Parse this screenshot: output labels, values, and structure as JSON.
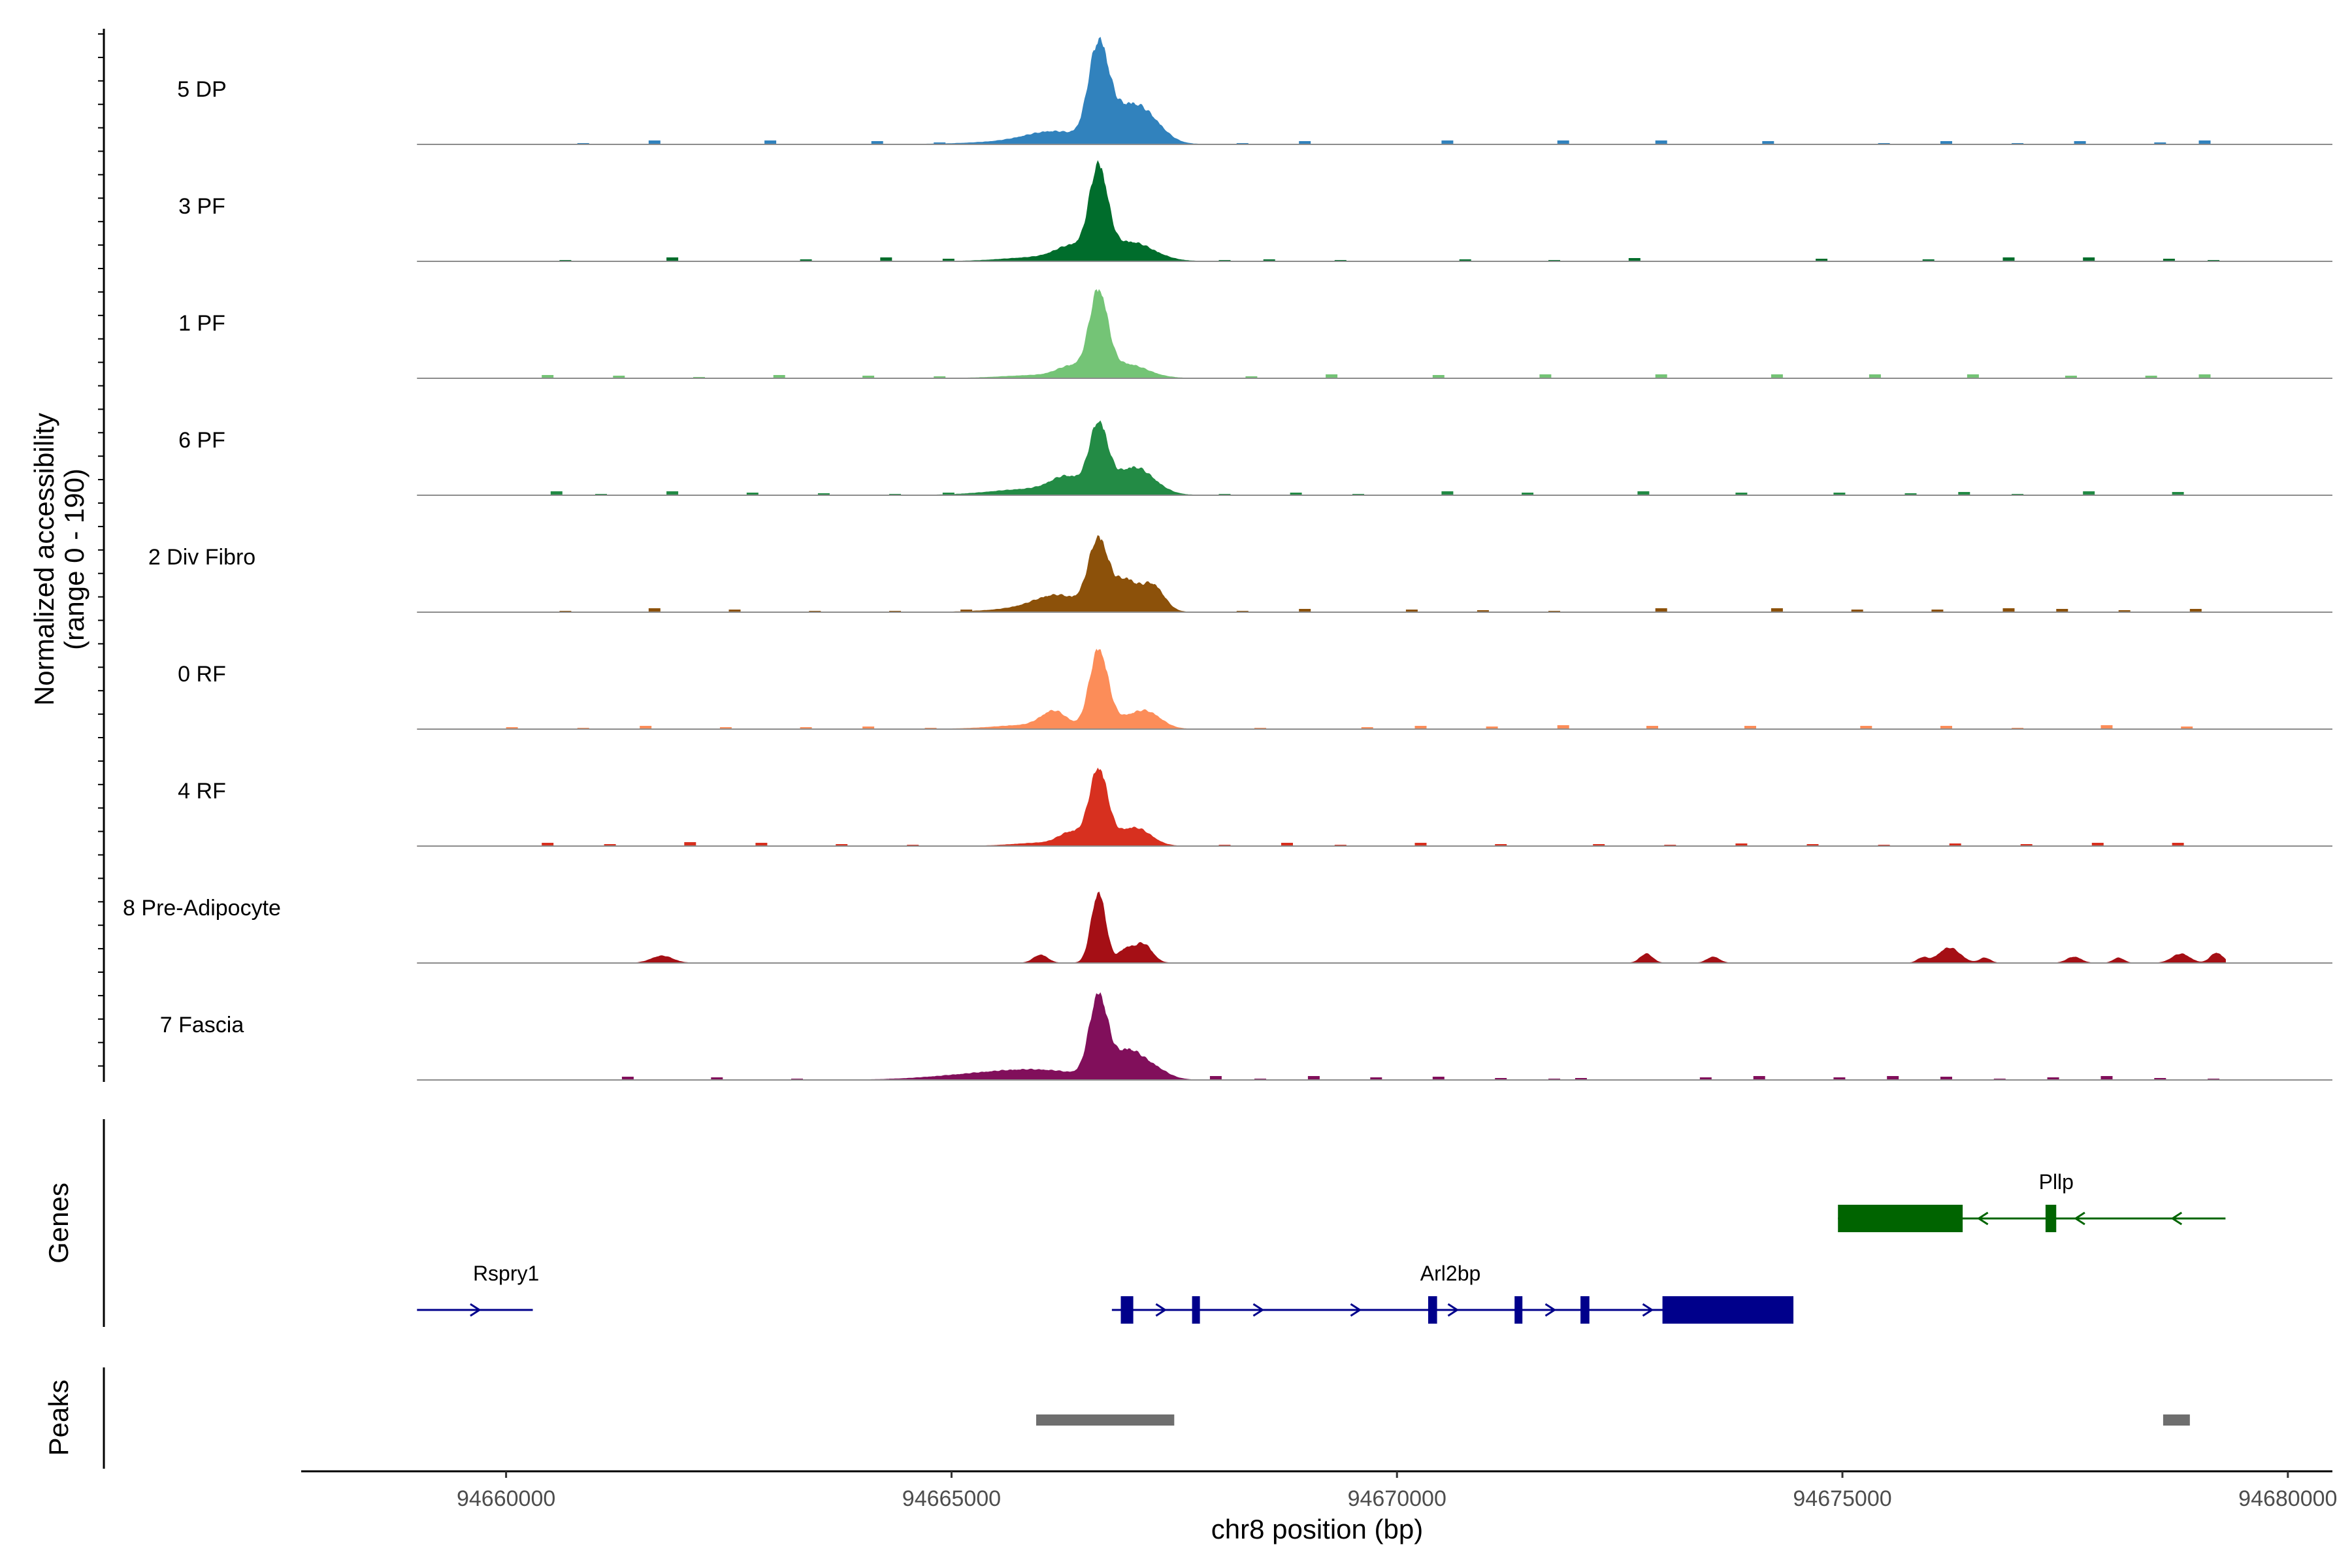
{
  "chart_data": {
    "type": "area",
    "title": "",
    "ylabel": "Normalized accessibility",
    "ylabel_range": "(range 0 - 190)",
    "xlabel": "chr8 position (bp)",
    "chrom": "chr8",
    "xlim": [
      94657700,
      94680500
    ],
    "ylim": [
      0,
      190
    ],
    "x_ticks": [
      94660000,
      94665000,
      94670000,
      94675000,
      94680000
    ],
    "x_tick_labels": [
      "94660000",
      "94665000",
      "94670000",
      "94675000",
      "94680000"
    ],
    "track_x_range": [
      94659000,
      94679300
    ],
    "tracks": [
      {
        "name": "5 DP",
        "color": "#3182bd",
        "peaks": [
          [
            94666650,
            185,
            110
          ],
          [
            94666900,
            40,
            160
          ],
          [
            94667150,
            60,
            200
          ],
          [
            94666150,
            18,
            300
          ],
          [
            94666050,
            8,
            600
          ]
        ],
        "specks": [
          94660800,
          94661600,
          94662900,
          94664100,
          94664800,
          94668200,
          94668900,
          94670500,
          94671800,
          94672900,
          94674100,
          94675400,
          94676100,
          94676900,
          94677600,
          94678500,
          94679000
        ]
      },
      {
        "name": "3 PF",
        "color": "#006d2c",
        "peaks": [
          [
            94666650,
            170,
            100
          ],
          [
            94666350,
            25,
            180
          ],
          [
            94667000,
            38,
            260
          ],
          [
            94666000,
            8,
            400
          ]
        ],
        "specks": [
          94660600,
          94661800,
          94663300,
          94664200,
          94664900,
          94668000,
          94668500,
          94669300,
          94670700,
          94671700,
          94672600,
          94674700,
          94675900,
          94676800,
          94677700,
          94678600,
          94679100
        ]
      },
      {
        "name": "1 PF",
        "color": "#74c476",
        "peaks": [
          [
            94666650,
            160,
            100
          ],
          [
            94666350,
            20,
            160
          ],
          [
            94666950,
            28,
            240
          ],
          [
            94666000,
            6,
            400
          ]
        ],
        "specks": [
          94660400,
          94661200,
          94662100,
          94663000,
          94664000,
          94664800,
          94668300,
          94669200,
          94670400,
          94671600,
          94672900,
          94674200,
          94675300,
          94676400,
          94677500,
          94678400,
          94679000
        ]
      },
      {
        "name": "6 PF",
        "color": "#238b45",
        "peaks": [
          [
            94666650,
            130,
            100
          ],
          [
            94666300,
            30,
            180
          ],
          [
            94667050,
            55,
            220
          ],
          [
            94665900,
            12,
            450
          ]
        ],
        "specks": [
          94660500,
          94661000,
          94661800,
          94662700,
          94663500,
          94664300,
          94664900,
          94668000,
          94668800,
          94669500,
          94670500,
          94671400,
          94672700,
          94673800,
          94674900,
          94675700,
          94676300,
          94676900,
          94677700,
          94678700
        ]
      },
      {
        "name": "2 Div Fibro",
        "color": "#8c510a",
        "peaks": [
          [
            94666650,
            140,
            110
          ],
          [
            94666950,
            60,
            120
          ],
          [
            94667250,
            55,
            130
          ],
          [
            94666200,
            28,
            250
          ],
          [
            94665900,
            8,
            400
          ]
        ],
        "specks": [
          94660600,
          94661600,
          94662500,
          94663400,
          94664300,
          94665100,
          94668200,
          94668900,
          94670100,
          94670900,
          94671700,
          94672900,
          94674200,
          94675100,
          94676000,
          94676800,
          94677400,
          94678100,
          94678900
        ]
      },
      {
        "name": "0 RF",
        "color": "#fc8d59",
        "peaks": [
          [
            94666650,
            150,
            100
          ],
          [
            94666150,
            30,
            140
          ],
          [
            94667200,
            30,
            160
          ],
          [
            94666900,
            18,
            200
          ],
          [
            94665900,
            8,
            400
          ]
        ],
        "specks": [
          94660000,
          94660800,
          94661500,
          94662400,
          94663300,
          94664000,
          94664700,
          94668400,
          94669600,
          94670200,
          94671000,
          94671800,
          94672800,
          94673900,
          94675200,
          94676100,
          94676900,
          94677900,
          94678800
        ]
      },
      {
        "name": "4 RF",
        "color": "#d7301f",
        "peaks": [
          [
            94666650,
            150,
            100
          ],
          [
            94666350,
            25,
            140
          ],
          [
            94667100,
            30,
            160
          ],
          [
            94666900,
            14,
            140
          ],
          [
            94666000,
            6,
            300
          ]
        ],
        "specks": [
          94660400,
          94661100,
          94662000,
          94662800,
          94663700,
          94664500,
          94668000,
          94668700,
          94669300,
          94670200,
          94671100,
          94672200,
          94673000,
          94673800,
          94674600,
          94675400,
          94676200,
          94677000,
          94677800,
          94678700
        ]
      },
      {
        "name": "8 Pre-Adipocyte",
        "color": "#a50f15",
        "peaks": [
          [
            94666650,
            140,
            80
          ],
          [
            94666950,
            25,
            80
          ],
          [
            94667150,
            38,
            100
          ],
          [
            94666000,
            16,
            80
          ],
          [
            94661750,
            14,
            120
          ],
          [
            94672800,
            18,
            70
          ],
          [
            94673550,
            12,
            70
          ],
          [
            94675900,
            10,
            60
          ],
          [
            94676200,
            30,
            120
          ],
          [
            94676600,
            10,
            60
          ],
          [
            94677600,
            12,
            80
          ],
          [
            94678100,
            10,
            60
          ],
          [
            94678800,
            18,
            100
          ],
          [
            94679200,
            20,
            70
          ]
        ],
        "specks": []
      },
      {
        "name": "7 Fascia",
        "color": "#810f5b",
        "peaks": [
          [
            94666650,
            160,
            100
          ],
          [
            94666950,
            45,
            140
          ],
          [
            94667200,
            30,
            180
          ],
          [
            94666000,
            18,
            500
          ],
          [
            94665200,
            8,
            500
          ]
        ],
        "specks": [
          94661300,
          94662300,
          94663200,
          94664300,
          94667900,
          94668400,
          94669000,
          94669700,
          94670400,
          94671100,
          94671700,
          94672000,
          94673400,
          94674000,
          94674900,
          94675500,
          94676100,
          94676700,
          94677300,
          94677900,
          94678500,
          94679100
        ]
      }
    ],
    "genes_track_label": "Genes",
    "peaks_track_label": "Peaks",
    "genes": [
      {
        "name": "Rspry1",
        "strand": "+",
        "color": "#00008b",
        "start": 94659000,
        "end": 94660300,
        "label_x": 94660000,
        "thick_start": null,
        "thick_end": null,
        "exons": [],
        "row": 2
      },
      {
        "name": "Arl2bp",
        "strand": "+",
        "color": "#00008b",
        "start": 94666800,
        "end": 94674450,
        "label_x": 94670600,
        "thick_start": 94666900,
        "thick_end": 94674450,
        "exons": [
          [
            94666900,
            94667040
          ],
          [
            94667700,
            94667760
          ],
          [
            94670350,
            94670450
          ],
          [
            94671320,
            94671400
          ],
          [
            94672060,
            94672160
          ],
          [
            94672980,
            94674450
          ]
        ],
        "row": 2
      },
      {
        "name": "Pllp",
        "strand": "-",
        "color": "#006400",
        "start": 94674950,
        "end": 94679300,
        "label_x": 94677400,
        "thick_start": 94674950,
        "thick_end": 94677400,
        "exons": [
          [
            94674950,
            94676350
          ],
          [
            94677280,
            94677400
          ]
        ],
        "row": 1
      }
    ],
    "peak_regions": [
      [
        94665950,
        94667500
      ],
      [
        94678600,
        94678900
      ]
    ],
    "peak_region_color": "#6e6e6e"
  }
}
